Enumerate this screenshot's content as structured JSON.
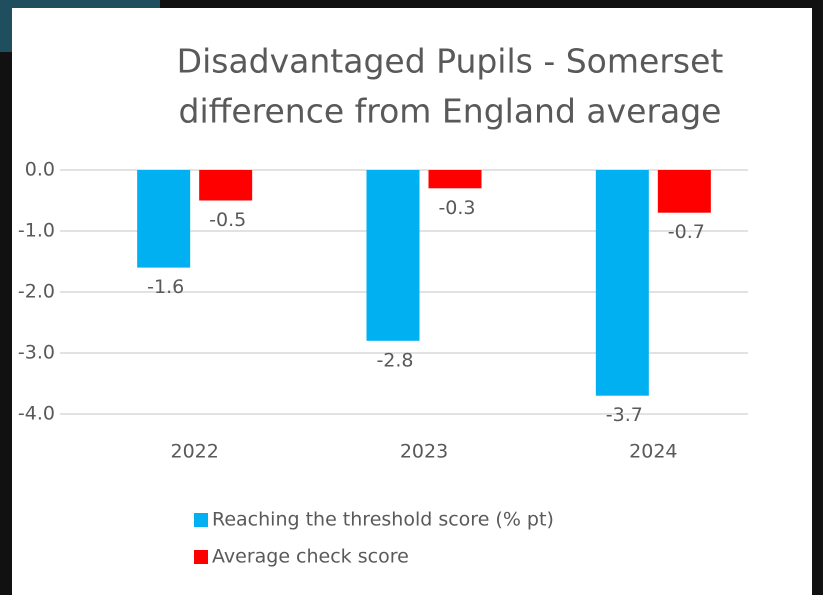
{
  "chart_data": {
    "type": "bar",
    "title": [
      "Disadvantaged Pupils - Somerset",
      "difference from England average"
    ],
    "categories": [
      "2022",
      "2023",
      "2024"
    ],
    "series": [
      {
        "name": "Reaching the threshold score (% pt)",
        "color": "#00b0f0",
        "values": [
          -1.6,
          -2.8,
          -3.7
        ]
      },
      {
        "name": "Average check score",
        "color": "#ff0000",
        "values": [
          -0.5,
          -0.3,
          -0.7
        ]
      }
    ],
    "ylim": [
      -4,
      0
    ],
    "yticks": [
      {
        "value": 0,
        "label": "0.0"
      },
      {
        "value": -1,
        "label": "-1.0"
      },
      {
        "value": -2,
        "label": "-2.0"
      },
      {
        "value": -3,
        "label": "-3.0"
      },
      {
        "value": -4,
        "label": "-4.0"
      }
    ],
    "grid": true,
    "legend": "bottom"
  }
}
